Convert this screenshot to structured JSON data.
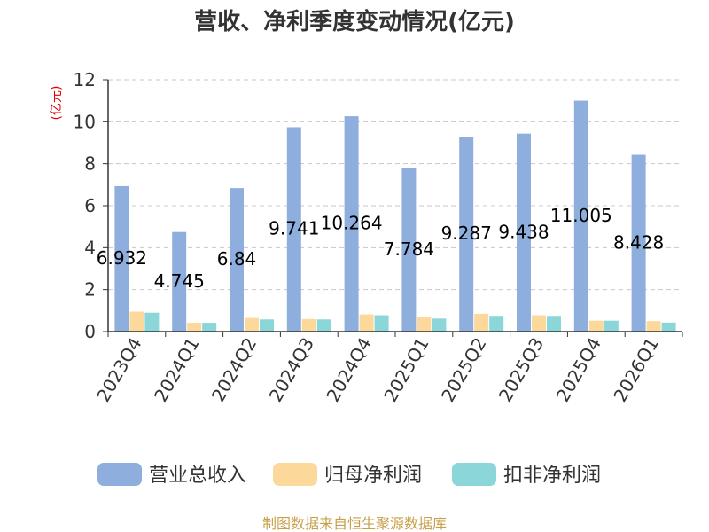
{
  "chart_data": {
    "type": "bar",
    "title": "营收、净利季度变动情况(亿元)",
    "ylabel": "(亿元)",
    "xlabel": "",
    "ylim": [
      0,
      12
    ],
    "yticks": [
      0,
      2,
      4,
      6,
      8,
      10,
      12
    ],
    "grid": true,
    "legend_position": "bottom",
    "categories": [
      "2023Q4",
      "2024Q1",
      "2024Q2",
      "2024Q3",
      "2024Q4",
      "2025Q1",
      "2025Q2",
      "2025Q3",
      "2025Q4",
      "2026Q1"
    ],
    "series": [
      {
        "name": "营业总收入",
        "color": "#8eaedd",
        "values": [
          6.932,
          4.745,
          6.84,
          9.741,
          10.264,
          7.784,
          9.287,
          9.438,
          11.005,
          8.428
        ],
        "labels": [
          "6.932",
          "4.745",
          "6.84",
          "9.741",
          "10.264",
          "7.784",
          "9.287",
          "9.438",
          "11.005",
          "8.428"
        ]
      },
      {
        "name": "归母净利润",
        "color": "#fdd89b",
        "values": [
          0.95,
          0.42,
          0.65,
          0.6,
          0.82,
          0.72,
          0.85,
          0.78,
          0.52,
          0.5
        ]
      },
      {
        "name": "扣非净利润",
        "color": "#8ad6d8",
        "values": [
          0.9,
          0.42,
          0.58,
          0.58,
          0.78,
          0.62,
          0.75,
          0.75,
          0.52,
          0.43
        ]
      }
    ]
  },
  "footer": {
    "source": "制图数据来自恒生聚源数据库"
  }
}
